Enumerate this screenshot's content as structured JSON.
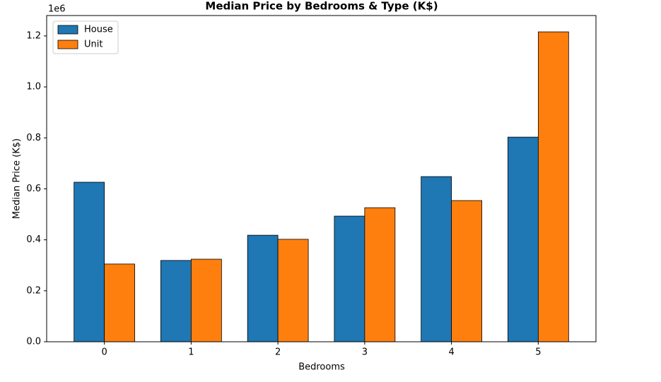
{
  "chart_data": {
    "type": "bar",
    "title": "Median Price by Bedrooms & Type (K$)",
    "x_label": "Bedrooms",
    "y_label": "Median Price (K$)",
    "y_offset_label": "1e6",
    "categories": [
      "0",
      "1",
      "2",
      "3",
      "4",
      "5"
    ],
    "series": [
      {
        "name": "House",
        "color": "#1f77b4",
        "values": [
          626000,
          319000,
          418000,
          493000,
          648000,
          803000
        ]
      },
      {
        "name": "Unit",
        "color": "#ff7f0e",
        "values": [
          305000,
          324000,
          402000,
          526000,
          554000,
          1216000
        ]
      }
    ],
    "ylim": [
      0,
      1280000
    ],
    "yticks": [
      {
        "value": 0,
        "label": "0.0"
      },
      {
        "value": 200000,
        "label": "0.2"
      },
      {
        "value": 400000,
        "label": "0.4"
      },
      {
        "value": 600000,
        "label": "0.6"
      },
      {
        "value": 800000,
        "label": "0.8"
      },
      {
        "value": 1000000,
        "label": "1.0"
      },
      {
        "value": 1200000,
        "label": "1.2"
      }
    ],
    "legend": "upper left",
    "grid": false
  }
}
